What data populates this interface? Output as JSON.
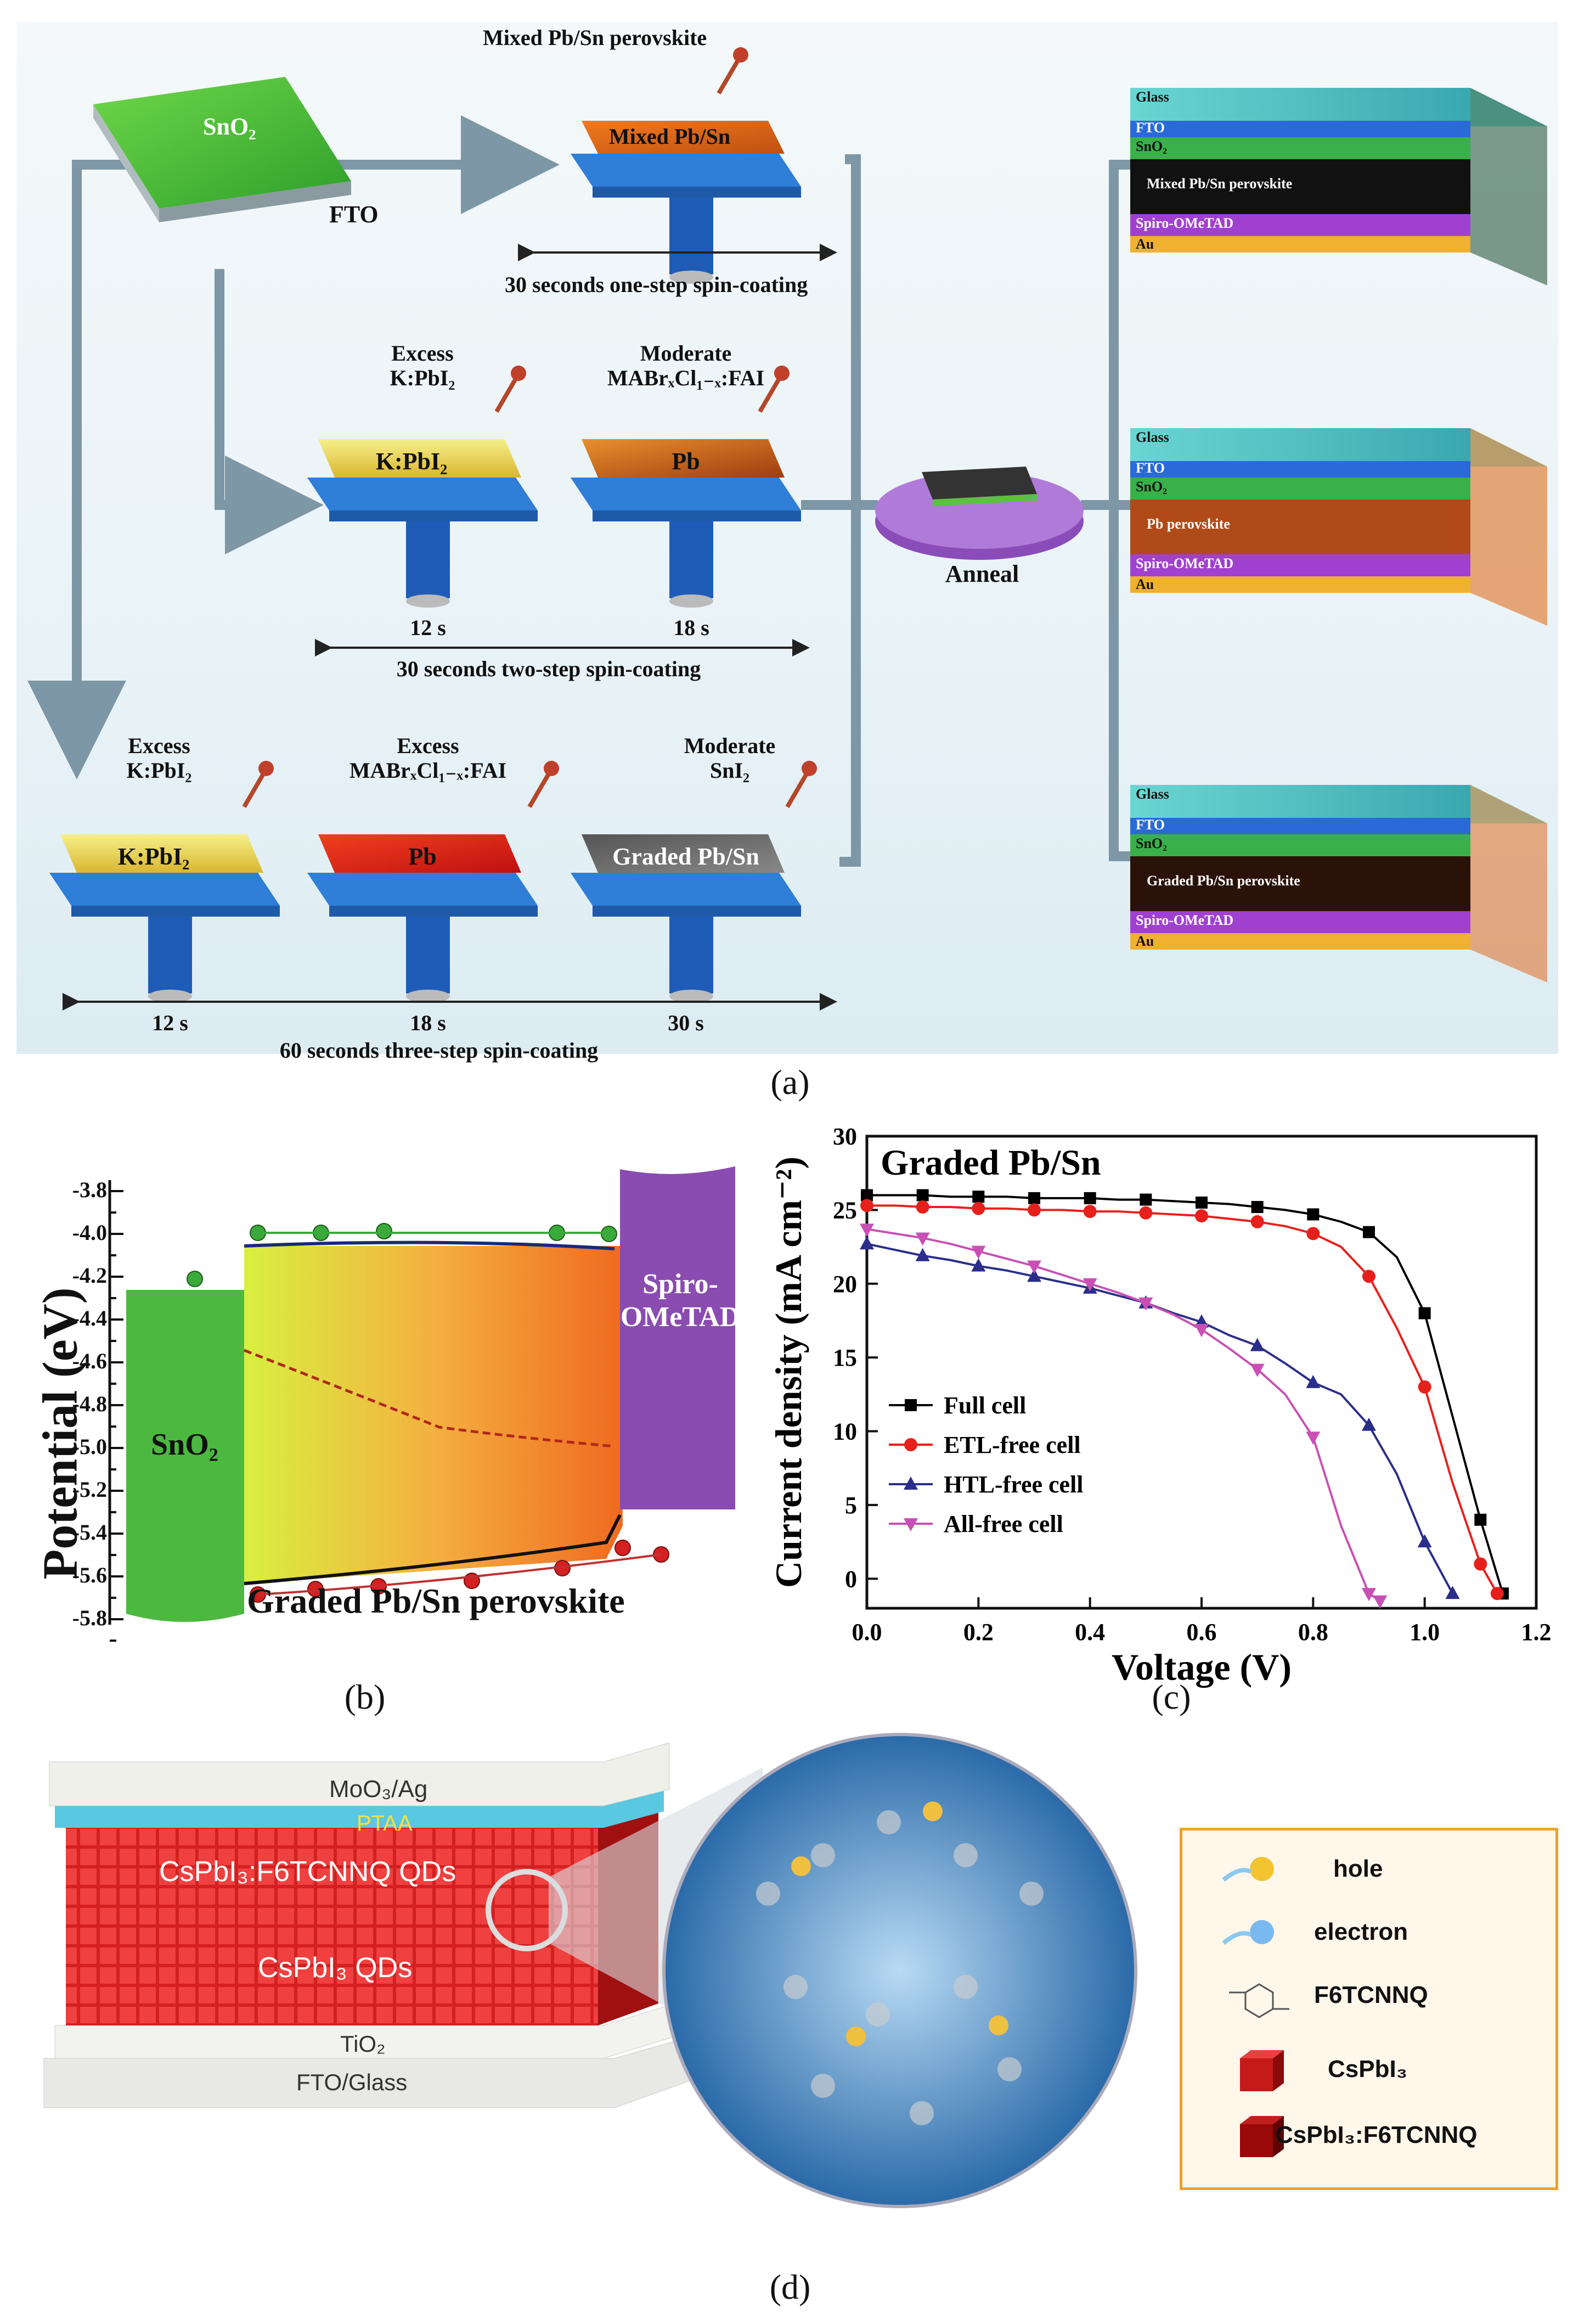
{
  "panel_a": {
    "substrate": {
      "top_label": "SnO₂",
      "side_label": "FTO"
    },
    "one_step": {
      "drop_label": "Mixed Pb/Sn perovskite",
      "film_label": "Mixed Pb/Sn",
      "duration": "30 seconds one-step spin-coating"
    },
    "two_step": {
      "step1_reagent_l1": "Excess",
      "step1_reagent_l2": "K:PbI₂",
      "step1_film": "K:PbI₂",
      "step1_time": "12 s",
      "step2_reagent_l1": "Moderate",
      "step2_reagent_l2": "MABrₓCl₁₋ₓ:FAI",
      "step2_film": "Pb",
      "step2_time": "18 s",
      "duration": "30 seconds two-step spin-coating"
    },
    "three_step": {
      "step1_reagent_l1": "Excess",
      "step1_reagent_l2": "K:PbI₂",
      "step1_film": "K:PbI₂",
      "step1_time": "12 s",
      "step2_reagent_l1": "Excess",
      "step2_reagent_l2": "MABrₓCl₁₋ₓ:FAI",
      "step2_film": "Pb",
      "step2_time": "18 s",
      "step3_reagent_l1": "Moderate",
      "step3_reagent_l2": "SnI₂",
      "step3_film": "Graded Pb/Sn",
      "step3_time": "30 s",
      "duration": "60 seconds three-step spin-coating"
    },
    "anneal_label": "Anneal",
    "devices": [
      {
        "glass": "Glass",
        "fto": "FTO",
        "sno2": "SnO₂",
        "perovskite": "Mixed Pb/Sn perovskite",
        "htl": "Spiro-OMeTAD",
        "au": "Au"
      },
      {
        "glass": "Glass",
        "fto": "FTO",
        "sno2": "SnO₂",
        "perovskite": "Pb perovskite",
        "htl": "Spiro-OMeTAD",
        "au": "Au"
      },
      {
        "glass": "Glass",
        "fto": "FTO",
        "sno2": "SnO₂",
        "perovskite": "Graded Pb/Sn perovskite",
        "htl": "Spiro-OMeTAD",
        "au": "Au"
      }
    ],
    "caption": "(a)"
  },
  "panel_b": {
    "ylabel": "Potential (eV)",
    "yticks": [
      "-3.8",
      "-4.0",
      "-4.2",
      "-4.4",
      "-4.6",
      "-4.8",
      "-5.0",
      "-5.2",
      "-5.4",
      "-5.6",
      "-5.8"
    ],
    "sno2_label": "SnO₂",
    "spiro_label_l1": "Spiro-",
    "spiro_label_l2": "OMeTAD",
    "perovskite_label": "Graded Pb/Sn perovskite",
    "caption": "(b)"
  },
  "chart_data": {
    "type": "line",
    "title": "Graded Pb/Sn",
    "xlabel": "Voltage (V)",
    "ylabel": "Current density (mA cm⁻²)",
    "xlim": [
      0,
      1.2
    ],
    "ylim": [
      -2,
      30
    ],
    "xticks": [
      "0.0",
      "0.2",
      "0.4",
      "0.6",
      "0.8",
      "1.0",
      "1.2"
    ],
    "yticks": [
      "0",
      "5",
      "10",
      "15",
      "20",
      "25",
      "30"
    ],
    "series": [
      {
        "name": "Full cell",
        "color": "#000000",
        "marker": "square",
        "x": [
          0,
          0.05,
          0.1,
          0.15,
          0.2,
          0.25,
          0.3,
          0.35,
          0.4,
          0.45,
          0.5,
          0.55,
          0.6,
          0.65,
          0.7,
          0.75,
          0.8,
          0.85,
          0.9,
          0.95,
          1.0,
          1.05,
          1.1,
          1.14
        ],
        "y": [
          26,
          26,
          26,
          25.9,
          25.9,
          25.9,
          25.8,
          25.8,
          25.8,
          25.7,
          25.7,
          25.6,
          25.5,
          25.4,
          25.2,
          25.0,
          24.7,
          24.2,
          23.5,
          21.8,
          18,
          11,
          4,
          -1
        ]
      },
      {
        "name": "ETL-free cell",
        "color": "#e8201c",
        "marker": "circle",
        "x": [
          0,
          0.05,
          0.1,
          0.15,
          0.2,
          0.25,
          0.3,
          0.35,
          0.4,
          0.45,
          0.5,
          0.55,
          0.6,
          0.65,
          0.7,
          0.75,
          0.8,
          0.85,
          0.9,
          0.95,
          1.0,
          1.05,
          1.1,
          1.13
        ],
        "y": [
          25.3,
          25.3,
          25.2,
          25.2,
          25.1,
          25.1,
          25.0,
          25.0,
          24.9,
          24.9,
          24.8,
          24.7,
          24.6,
          24.4,
          24.2,
          23.9,
          23.4,
          22.5,
          20.5,
          17,
          13,
          6.5,
          1,
          -1
        ]
      },
      {
        "name": "HTL-free cell",
        "color": "#2a2e8a",
        "marker": "triangle-up",
        "x": [
          0,
          0.05,
          0.1,
          0.15,
          0.2,
          0.25,
          0.3,
          0.35,
          0.4,
          0.45,
          0.5,
          0.55,
          0.6,
          0.65,
          0.7,
          0.75,
          0.8,
          0.85,
          0.9,
          0.95,
          1.0,
          1.05
        ],
        "y": [
          22.7,
          22.3,
          21.9,
          21.6,
          21.2,
          20.9,
          20.5,
          20.1,
          19.7,
          19.2,
          18.7,
          18.0,
          17.4,
          16.5,
          15.8,
          14.6,
          13.3,
          12.5,
          10.4,
          7.1,
          2.5,
          -1
        ]
      },
      {
        "name": "All-free cell",
        "color": "#c850b4",
        "marker": "triangle-down",
        "x": [
          0,
          0.05,
          0.1,
          0.15,
          0.2,
          0.25,
          0.3,
          0.35,
          0.4,
          0.45,
          0.5,
          0.55,
          0.6,
          0.65,
          0.7,
          0.75,
          0.8,
          0.85,
          0.9,
          0.92
        ],
        "y": [
          23.7,
          23.4,
          23.1,
          22.7,
          22.2,
          21.7,
          21.2,
          20.6,
          20.0,
          19.4,
          18.7,
          17.9,
          16.9,
          15.6,
          14.2,
          12.5,
          9.6,
          3.6,
          -1,
          -1.5
        ]
      }
    ],
    "caption": "(c)"
  },
  "panel_d": {
    "layers": {
      "top": "MoO₃/Ag",
      "ptaa": "PTAA",
      "f6_qds": "CsPbI₃:F6TCNNQ QDs",
      "qds": "CsPbI₃ QDs",
      "tio2": "TiO₂",
      "fto": "FTO/Glass"
    },
    "legend": [
      "hole",
      "electron",
      "F6TCNNQ",
      "CsPbI₃",
      "CsPbI₃:F6TCNNQ"
    ],
    "caption": "(d)"
  }
}
